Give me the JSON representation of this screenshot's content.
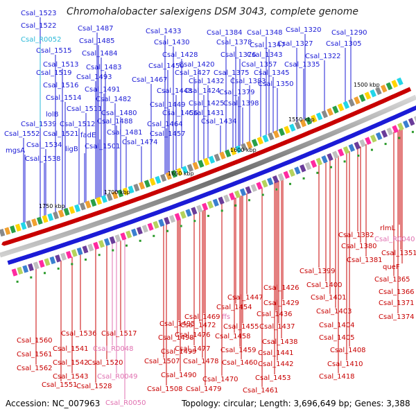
{
  "title": "Chromohalobacter salexigens DSM 3043, complete genome",
  "footer": {
    "accession": "Accession: NC_007963",
    "topology": "Topology: circular; Length: 3,696,649 bp; Genes: 3,388"
  },
  "colors": {
    "forward": "#1b1bd6",
    "reverse": "#c80000",
    "rna": "#e070b0",
    "trna": "#29b8d8",
    "backbone": "#7a7a7a"
  },
  "scale_labels": [
    "1500 kbp",
    "1550 kbp",
    "1600 kbp",
    "1650 kbp",
    "1700 kbp",
    "1750 kbp"
  ],
  "top_labels": [
    {
      "text": "Csal_1523",
      "c": "blue"
    },
    {
      "text": "Csal_1522",
      "c": "blue"
    },
    {
      "text": "Csal_R0052",
      "c": "cyan"
    },
    {
      "text": "Csal_1515",
      "c": "blue"
    },
    {
      "text": "Csal_1513",
      "c": "blue"
    },
    {
      "text": "Csal_1519",
      "c": "blue"
    },
    {
      "text": "Csal_1516",
      "c": "blue"
    },
    {
      "text": "Csal_1514",
      "c": "blue"
    },
    {
      "text": "lolB",
      "c": "blue"
    },
    {
      "text": "Csal_1511",
      "c": "blue"
    },
    {
      "text": "Csal_1539",
      "c": "blue"
    },
    {
      "text": "Csal_1512",
      "c": "blue"
    },
    {
      "text": "Csal_1552",
      "c": "blue"
    },
    {
      "text": "Csal_1521",
      "c": "blue"
    },
    {
      "text": "fadE",
      "c": "blue"
    },
    {
      "text": "Csal_1534",
      "c": "blue"
    },
    {
      "text": "ligB",
      "c": "blue"
    },
    {
      "text": "mgsA",
      "c": "blue"
    },
    {
      "text": "Csal_1538",
      "c": "blue"
    },
    {
      "text": "Csal_1487",
      "c": "blue"
    },
    {
      "text": "Csal_1485",
      "c": "blue"
    },
    {
      "text": "Csal_1484",
      "c": "blue"
    },
    {
      "text": "Csal_1483",
      "c": "blue"
    },
    {
      "text": "Csal_1493",
      "c": "blue"
    },
    {
      "text": "Csal_1491",
      "c": "blue"
    },
    {
      "text": "Csal_1482",
      "c": "blue"
    },
    {
      "text": "Csal_1480",
      "c": "blue"
    },
    {
      "text": "Csal_1488",
      "c": "blue"
    },
    {
      "text": "Csal_1481",
      "c": "blue"
    },
    {
      "text": "Csal_1501",
      "c": "blue"
    },
    {
      "text": "Csal_1474",
      "c": "blue"
    },
    {
      "text": "Csal_1433",
      "c": "blue"
    },
    {
      "text": "Csal_1430",
      "c": "blue"
    },
    {
      "text": "Csal_1428",
      "c": "blue"
    },
    {
      "text": "Csal_1450",
      "c": "blue"
    },
    {
      "text": "Csal_1420",
      "c": "blue"
    },
    {
      "text": "Csal_1427",
      "c": "blue"
    },
    {
      "text": "Csal_1467",
      "c": "blue"
    },
    {
      "text": "Csal_1432",
      "c": "blue"
    },
    {
      "text": "Csal_1448",
      "c": "blue"
    },
    {
      "text": "Csal_1424",
      "c": "blue"
    },
    {
      "text": "Csal_1449",
      "c": "blue"
    },
    {
      "text": "Csal_1425",
      "c": "blue"
    },
    {
      "text": "Csal_1456",
      "c": "blue"
    },
    {
      "text": "Csal_1431",
      "c": "blue"
    },
    {
      "text": "Csal_1464",
      "c": "blue"
    },
    {
      "text": "Csal_1434",
      "c": "blue"
    },
    {
      "text": "Csal_1457",
      "c": "blue"
    },
    {
      "text": "Csal_1384",
      "c": "blue"
    },
    {
      "text": "Csal_1378",
      "c": "blue"
    },
    {
      "text": "Csal_1376",
      "c": "blue"
    },
    {
      "text": "Csal_1348",
      "c": "blue"
    },
    {
      "text": "Csal_1347",
      "c": "blue"
    },
    {
      "text": "Csal_1343",
      "c": "blue"
    },
    {
      "text": "Csal_1357",
      "c": "blue"
    },
    {
      "text": "Csal_1375",
      "c": "blue"
    },
    {
      "text": "Csal_1345",
      "c": "blue"
    },
    {
      "text": "Csal_1383",
      "c": "blue"
    },
    {
      "text": "Csal_1350",
      "c": "blue"
    },
    {
      "text": "Csal_1379",
      "c": "blue"
    },
    {
      "text": "Csal_1398",
      "c": "blue"
    },
    {
      "text": "Csal_1320",
      "c": "blue"
    },
    {
      "text": "Csal_1327",
      "c": "blue"
    },
    {
      "text": "Csal_1335",
      "c": "blue"
    },
    {
      "text": "Csal_1322",
      "c": "blue"
    },
    {
      "text": "Csal_1290",
      "c": "blue"
    },
    {
      "text": "Csal_1305",
      "c": "blue"
    }
  ],
  "bottom_labels": [
    {
      "text": "rlmL",
      "c": "red"
    },
    {
      "text": "Csal_R0040",
      "c": "pink"
    },
    {
      "text": "Csal_1382",
      "c": "red"
    },
    {
      "text": "Csal_1351",
      "c": "red"
    },
    {
      "text": "Csal_1380",
      "c": "red"
    },
    {
      "text": "Csal_1381",
      "c": "red"
    },
    {
      "text": "queF",
      "c": "red"
    },
    {
      "text": "Csal_1399",
      "c": "red"
    },
    {
      "text": "Csal_1365",
      "c": "red"
    },
    {
      "text": "Csal_1400",
      "c": "red"
    },
    {
      "text": "Csal_1366",
      "c": "red"
    },
    {
      "text": "Csal_1426",
      "c": "red"
    },
    {
      "text": "Csal_1401",
      "c": "red"
    },
    {
      "text": "Csal_1371",
      "c": "red"
    },
    {
      "text": "Csal_1429",
      "c": "red"
    },
    {
      "text": "Csal_1403",
      "c": "red"
    },
    {
      "text": "Csal_1374",
      "c": "red"
    },
    {
      "text": "Csal_1447",
      "c": "red"
    },
    {
      "text": "Csal_1454",
      "c": "red"
    },
    {
      "text": "Csal_1436",
      "c": "red"
    },
    {
      "text": "Csal_1404",
      "c": "red"
    },
    {
      "text": "Csal_1469",
      "c": "red"
    },
    {
      "text": "ffs",
      "c": "pink"
    },
    {
      "text": "Csal_1455",
      "c": "red"
    },
    {
      "text": "Csal_1437",
      "c": "red"
    },
    {
      "text": "Csal_1405",
      "c": "red"
    },
    {
      "text": "Csal_1472",
      "c": "red"
    },
    {
      "text": "Csal_1458",
      "c": "red"
    },
    {
      "text": "Csal_1438",
      "c": "red"
    },
    {
      "text": "Csal_1476",
      "c": "red"
    },
    {
      "text": "Csal_1441",
      "c": "red"
    },
    {
      "text": "Csal_1408",
      "c": "red"
    },
    {
      "text": "Csal_1495",
      "c": "red"
    },
    {
      "text": "Csal_1477",
      "c": "red"
    },
    {
      "text": "Csal_1459",
      "c": "red"
    },
    {
      "text": "Csal_1498",
      "c": "red"
    },
    {
      "text": "Csal_1460",
      "c": "red"
    },
    {
      "text": "Csal_1442",
      "c": "red"
    },
    {
      "text": "Csal_1410",
      "c": "red"
    },
    {
      "text": "Csal_1499",
      "c": "red"
    },
    {
      "text": "Csal_1478",
      "c": "red"
    },
    {
      "text": "Csal_1507",
      "c": "red"
    },
    {
      "text": "Csal_1490",
      "c": "red"
    },
    {
      "text": "Csal_1470",
      "c": "red"
    },
    {
      "text": "Csal_1453",
      "c": "red"
    },
    {
      "text": "Csal_1418",
      "c": "red"
    },
    {
      "text": "Csal_1479",
      "c": "red"
    },
    {
      "text": "Csal_1461",
      "c": "red"
    },
    {
      "text": "Csal_1508",
      "c": "red"
    },
    {
      "text": "Csal_1517",
      "c": "red"
    },
    {
      "text": "Csal_R0048",
      "c": "pink"
    },
    {
      "text": "Csal_1520",
      "c": "red"
    },
    {
      "text": "Csal_R0049",
      "c": "pink"
    },
    {
      "text": "Csal_1528",
      "c": "red"
    },
    {
      "text": "Csal_R0050",
      "c": "pink"
    },
    {
      "text": "Csal_1536",
      "c": "red"
    },
    {
      "text": "Csal_1541",
      "c": "red"
    },
    {
      "text": "Csal_1542",
      "c": "red"
    },
    {
      "text": "Csal_1543",
      "c": "red"
    },
    {
      "text": "Csal_1551",
      "c": "red"
    },
    {
      "text": "Csal_1560",
      "c": "red"
    },
    {
      "text": "Csal_1561",
      "c": "red"
    },
    {
      "text": "Csal_1562",
      "c": "red"
    }
  ]
}
